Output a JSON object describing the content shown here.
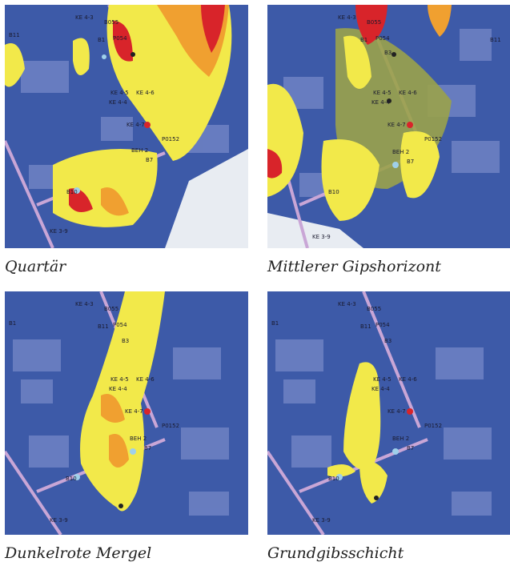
{
  "panels": [
    {
      "caption": "Quartär",
      "labels": [
        "KE 4-3",
        "B055",
        "B11",
        "P054",
        "B1",
        "KE 4-5",
        "KE 4-4",
        "KE 4-6",
        "KE 4-7",
        "P0152",
        "BEH 2",
        "B7",
        "B10",
        "KE 3-9"
      ]
    },
    {
      "caption": "Mittlerer Gipshorizont",
      "labels": [
        "KE 4-3",
        "B055",
        "B11",
        "P054",
        "B1",
        "B3",
        "KE 4-5",
        "KE 4-6",
        "KE 4-4",
        "KE 4-7",
        "P0152",
        "BEH 2",
        "B7",
        "B10",
        "KE 3-9"
      ]
    },
    {
      "caption": "Dunkelrote Mergel",
      "labels": [
        "KE 4-3",
        "B055",
        "B1",
        "P054",
        "B11",
        "B3",
        "KE 4-5",
        "KE 4-6",
        "KE 4-4",
        "KE 4-7",
        "P0152",
        "BEH 2",
        "B7",
        "B10",
        "KE 3-9"
      ]
    },
    {
      "caption": "Grundgibsschicht",
      "labels": [
        "KE 4-3",
        "B055",
        "B1",
        "P054",
        "B11",
        "B3",
        "KE 4-5",
        "KE 4-6",
        "KE 4-4",
        "KE 4-7",
        "P0152",
        "BEH 2",
        "B7",
        "B10",
        "KE 3-9"
      ]
    }
  ],
  "colors": {
    "map_blue": "#3d5aa8",
    "building": "#6f82c4",
    "road": "#c9a6d6",
    "plume_yellow": "#f2e94a",
    "plume_orange": "#f0a030",
    "plume_red": "#d8242a",
    "well_blue": "#9fd0ea",
    "well_red": "#d8242a"
  }
}
